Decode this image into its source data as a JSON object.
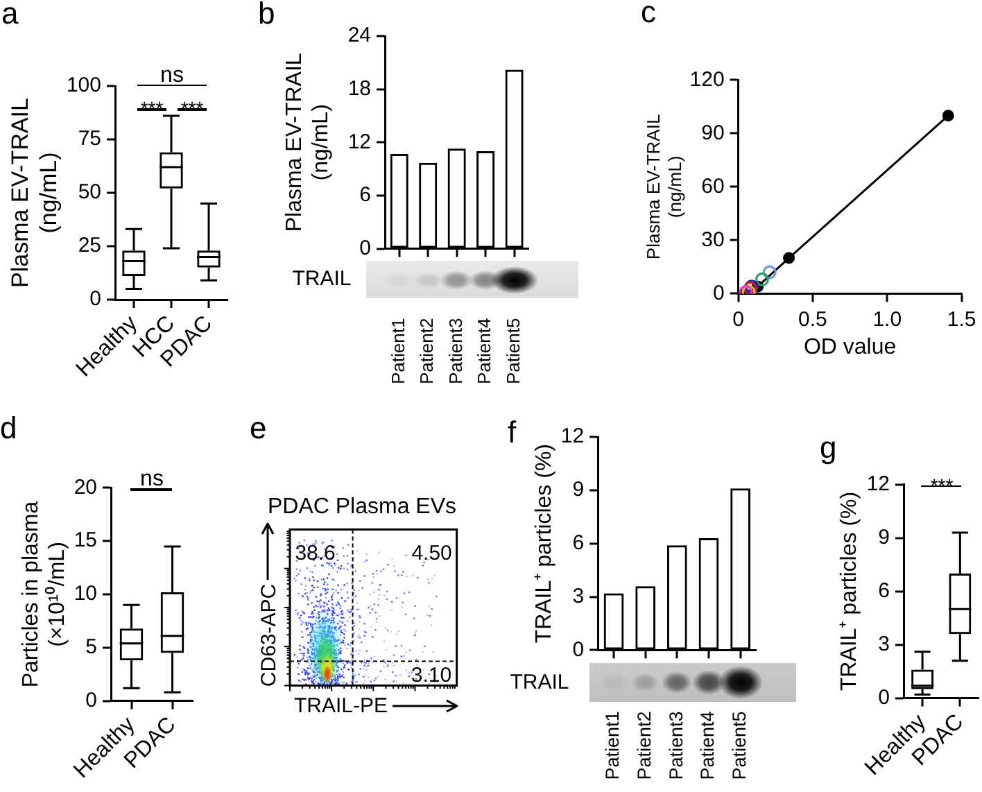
{
  "chart_data": [
    {
      "type": "box",
      "ylabel": "Plasma EV-TRAIL\n(ng/mL)",
      "categories": [
        "Healthy",
        "HCC",
        "PDAC"
      ],
      "color": "#000000",
      "boxes": [
        {
          "low": 5,
          "q1": 11,
          "median": 18,
          "q3": 23,
          "high": 33
        },
        {
          "low": 24,
          "q1": 52,
          "median": 62,
          "q3": 69,
          "high": 86
        },
        {
          "low": 9,
          "q1": 15,
          "median": 20,
          "q3": 23,
          "high": 45
        }
      ],
      "ylim": [
        0,
        100
      ],
      "yticks": [
        0,
        25,
        50,
        75,
        100
      ],
      "annotations": [
        "a",
        "ns",
        "***",
        "***"
      ]
    },
    {
      "type": "bar",
      "ylabel": "Plasma EV-TRAIL\n(ng/mL)",
      "categories": [
        "Patient1",
        "Patient2",
        "Patient3",
        "Patient4",
        "Patient5"
      ],
      "values": [
        10.7,
        9.7,
        11.3,
        11.0,
        20.2
      ],
      "color": "#000000",
      "ylim": [
        0,
        24
      ],
      "yticks": [
        0,
        6,
        12,
        18,
        24
      ],
      "annotations": [
        "b",
        "TRAIL"
      ]
    },
    {
      "type": "scatter",
      "xlabel": "OD value",
      "ylabel": "Plasma EV-TRAIL\n(ng/mL)",
      "marker": "circle",
      "series": [
        {
          "type": "line",
          "color": "#000000",
          "x": [
            0.04,
            0.13,
            0.34,
            1.41
          ],
          "values": [
            0,
            4,
            20,
            100
          ]
        },
        {
          "type": "scatter",
          "x": [
            0.21,
            0.16,
            0.09,
            0.08,
            0.07,
            0.05
          ],
          "values": [
            12,
            8,
            4,
            3,
            1,
            0.8
          ],
          "colors": [
            "#6a96d8",
            "#2ca05a",
            "#2020c0",
            "#d02020",
            "#e8b820",
            "#e040c8"
          ]
        }
      ],
      "xlim": [
        0,
        1.5
      ],
      "xticks": [
        0,
        0.5,
        {
          "value": 1,
          "label": "1.0"
        },
        1.5
      ],
      "ylim": [
        0,
        120
      ],
      "yticks": [
        0,
        30,
        60,
        90,
        120
      ],
      "annotations": [
        "c"
      ]
    },
    {
      "type": "box",
      "ylabel": "Particles in plasma\n(×10¹⁰/mL)",
      "categories": [
        "Healthy",
        "PDAC"
      ],
      "color": "#000000",
      "boxes": [
        {
          "low": 1.2,
          "q1": 3.8,
          "median": 5.4,
          "q3": 6.8,
          "high": 9.0
        },
        {
          "low": 0.8,
          "q1": 4.5,
          "median": 6.1,
          "q3": 10.2,
          "high": 14.5
        }
      ],
      "ylim": [
        0,
        20
      ],
      "yticks": [
        0,
        5,
        10,
        15,
        20
      ],
      "annotations": [
        "d",
        "ns"
      ]
    },
    {
      "type": "other",
      "title": "PDAC Plasma EVs",
      "xlabel": "TRAIL-PE",
      "ylabel": "CD63-APC",
      "annotations": [
        "e",
        "38.6",
        "4.50",
        "3.10"
      ]
    },
    {
      "type": "bar",
      "ylabel": "TRAIL⁺ particles (%)",
      "categories": [
        "Patient1",
        "Patient2",
        "Patient3",
        "Patient4",
        "Patient5"
      ],
      "values": [
        3.2,
        3.6,
        5.9,
        6.3,
        9.1
      ],
      "color": "#000000",
      "ylim": [
        0,
        12
      ],
      "yticks": [
        0,
        3,
        6,
        9,
        12
      ],
      "annotations": [
        "f",
        "TRAIL"
      ]
    },
    {
      "type": "box",
      "ylabel": "TRAIL⁺ particles (%)",
      "categories": [
        "Healthy",
        "PDAC"
      ],
      "color": "#000000",
      "boxes": [
        {
          "low": 0.2,
          "q1": 0.5,
          "median": 0.7,
          "q3": 1.6,
          "high": 2.6
        },
        {
          "low": 2.1,
          "q1": 3.6,
          "median": 5.0,
          "q3": 7.0,
          "high": 9.3
        }
      ],
      "ylim": [
        0,
        12
      ],
      "yticks": [
        0,
        3,
        6,
        9,
        12
      ],
      "annotations": [
        "g",
        "***"
      ]
    }
  ]
}
